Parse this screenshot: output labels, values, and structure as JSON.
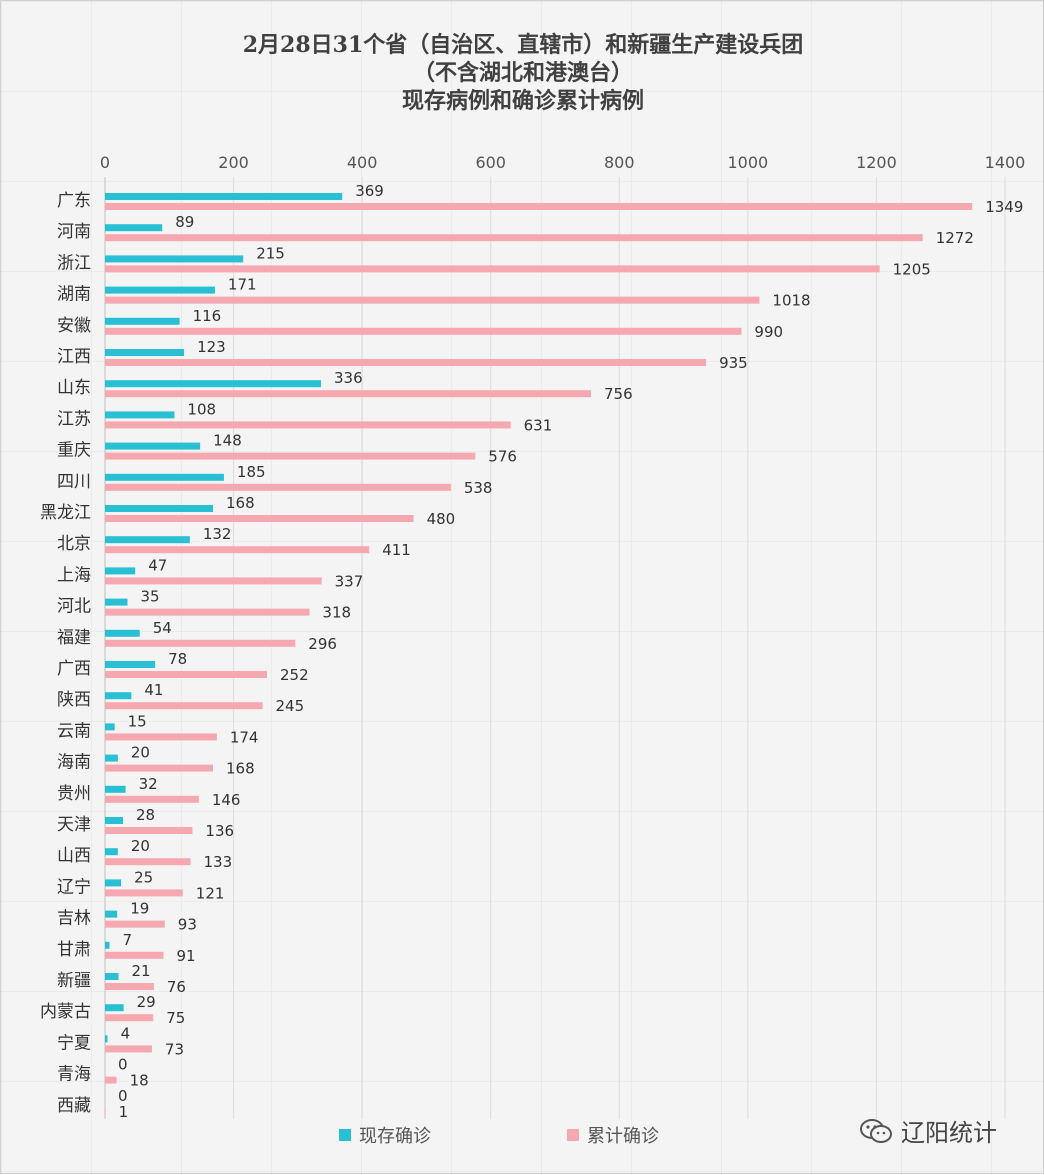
{
  "title": {
    "line1": "2月28日31个省（自治区、直辖市）和新疆生产建设兵团",
    "line2": "（不含湖北和港澳台）",
    "line3": "现存病例和确诊累计病例"
  },
  "watermark": {
    "text": "辽阳统计",
    "icon": "wechat-icon"
  },
  "colors": {
    "existing": "#29c0d3",
    "cumulative": "#f6a8b0"
  },
  "chart_data": {
    "type": "bar",
    "orientation": "horizontal",
    "title": "2月28日31个省（自治区、直辖市）和新疆生产建设兵团（不含湖北和港澳台）现存病例和确诊累计病例",
    "categories": [
      "广东",
      "河南",
      "浙江",
      "湖南",
      "安徽",
      "江西",
      "山东",
      "江苏",
      "重庆",
      "四川",
      "黑龙江",
      "北京",
      "上海",
      "河北",
      "福建",
      "广西",
      "陕西",
      "云南",
      "海南",
      "贵州",
      "天津",
      "山西",
      "辽宁",
      "吉林",
      "甘肃",
      "新疆",
      "内蒙古",
      "宁夏",
      "青海",
      "西藏"
    ],
    "series": [
      {
        "name": "现存确诊",
        "values": [
          369,
          89,
          215,
          171,
          116,
          123,
          336,
          108,
          148,
          185,
          168,
          132,
          47,
          35,
          54,
          78,
          41,
          15,
          20,
          32,
          28,
          20,
          25,
          19,
          7,
          21,
          29,
          4,
          0,
          0
        ]
      },
      {
        "name": "累计确诊",
        "values": [
          1349,
          1272,
          1205,
          1018,
          990,
          935,
          756,
          631,
          576,
          538,
          480,
          411,
          337,
          318,
          296,
          252,
          245,
          174,
          168,
          146,
          136,
          133,
          121,
          93,
          91,
          76,
          75,
          73,
          18,
          1
        ]
      }
    ],
    "xlim": [
      0,
      1400
    ],
    "xticks": [
      0,
      200,
      400,
      600,
      800,
      1000,
      1200,
      1400
    ],
    "axis_position": "top",
    "grid": true,
    "legend_position": "bottom"
  }
}
